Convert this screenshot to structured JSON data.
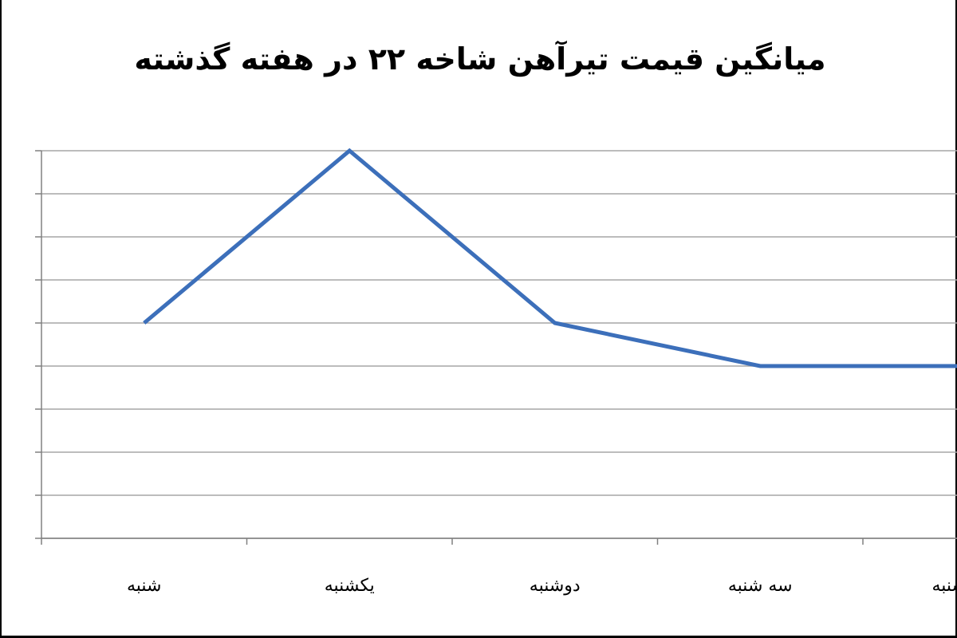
{
  "chart_data": {
    "type": "line",
    "title": "میانگین قیمت تیرآهن شاخه ۲۲ در هفته گذشته",
    "categories": [
      "شنبه",
      "یکشنبه",
      "دوشنبه",
      "سه شنبه",
      "چهارشنبه"
    ],
    "series": [
      {
        "values": [
          5,
          9,
          5,
          4,
          4
        ],
        "color": "#3c6fba"
      }
    ],
    "ylim": [
      0,
      9
    ],
    "grid": true,
    "xlabel": "",
    "ylabel": "",
    "gridline_color": "#a6a6a6",
    "axis_color": "#808080"
  }
}
